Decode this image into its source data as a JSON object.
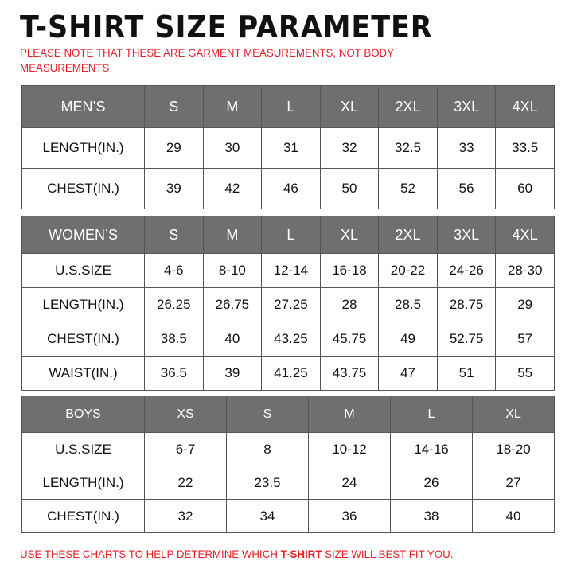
{
  "title": "T-SHIRT  SIZE  PARAMETER",
  "note": "PLEASE NOTE THAT THESE ARE GARMENT MEASUREMENTS, NOT BODY MEASUREMENTS",
  "men": {
    "header": [
      "MEN’S",
      "S",
      "M",
      "L",
      "XL",
      "2XL",
      "3XL",
      "4XL"
    ],
    "rows": [
      [
        "LENGTH(IN.)",
        "29",
        "30",
        "31",
        "32",
        "32.5",
        "33",
        "33.5"
      ],
      [
        "CHEST(IN.)",
        "39",
        "42",
        "46",
        "50",
        "52",
        "56",
        "60"
      ]
    ]
  },
  "women": {
    "header": [
      "WOMEN’S",
      "S",
      "M",
      "L",
      "XL",
      "2XL",
      "3XL",
      "4XL"
    ],
    "rows": [
      [
        "U.S.SIZE",
        "4-6",
        "8-10",
        "12-14",
        "16-18",
        "20-22",
        "24-26",
        "28-30"
      ],
      [
        "LENGTH(IN.)",
        "26.25",
        "26.75",
        "27.25",
        "28",
        "28.5",
        "28.75",
        "29"
      ],
      [
        "CHEST(IN.)",
        "38.5",
        "40",
        "43.25",
        "45.75",
        "49",
        "52.75",
        "57"
      ],
      [
        "WAIST(IN.)",
        "36.5",
        "39",
        "41.25",
        "43.75",
        "47",
        "51",
        "55"
      ]
    ]
  },
  "boys": {
    "header": [
      "BOYS",
      "XS",
      "S",
      "M",
      "L",
      "XL"
    ],
    "rows": [
      [
        "U.S.SIZE",
        "6-7",
        "8",
        "10-12",
        "14-16",
        "18-20"
      ],
      [
        "LENGTH(IN.)",
        "22",
        "23.5",
        "24",
        "26",
        "27"
      ],
      [
        "CHEST(IN.)",
        "32",
        "34",
        "36",
        "38",
        "40"
      ]
    ]
  },
  "footer": {
    "before": "USE THESE CHARTS TO HELP DETERMINE WHICH ",
    "bold": "T-SHIRT",
    "after": " SIZE WILL BEST FIT YOU."
  },
  "colors": {
    "header_bg": "#6f6f6f",
    "note": "#e8202a"
  }
}
